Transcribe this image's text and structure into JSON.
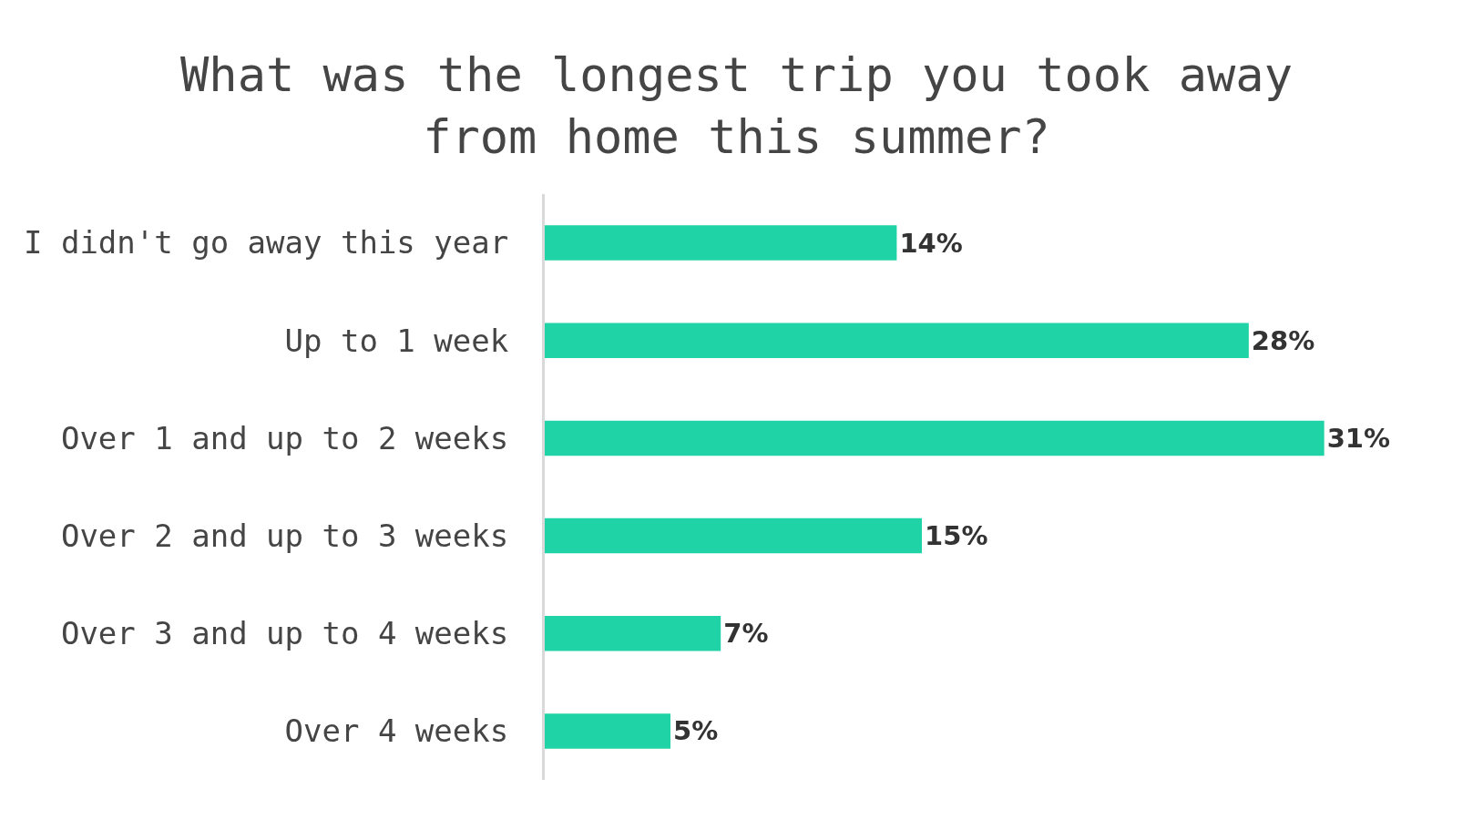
{
  "chart_data": {
    "type": "bar",
    "orientation": "horizontal",
    "title": "What was the longest trip you took away\nfrom home this summer?",
    "categories": [
      "I didn't go away this year",
      "Up to 1 week",
      "Over 1 and up to 2 weeks",
      "Over 2 and up to 3 weeks",
      "Over 3 and up to 4 weeks",
      "Over 4 weeks"
    ],
    "values": [
      14,
      28,
      31,
      15,
      7,
      5
    ],
    "value_labels": [
      "14%",
      "28%",
      "31%",
      "15%",
      "7%",
      "5%"
    ],
    "color": "#20d3a6",
    "tick_labels": "y"
  }
}
